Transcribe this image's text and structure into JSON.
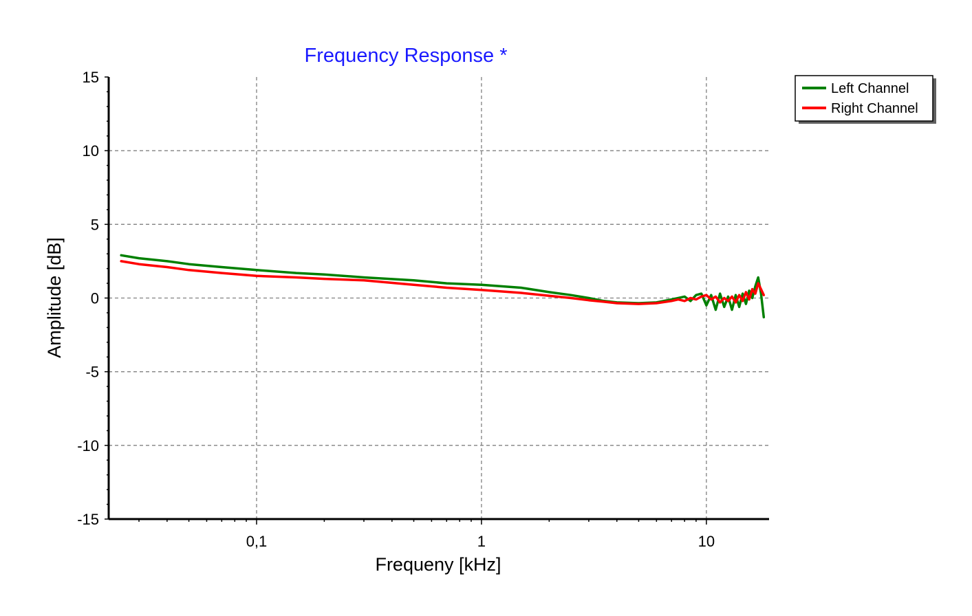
{
  "chart_data": {
    "type": "line",
    "title": "Frequency Response *",
    "xlabel": "Frequeny [kHz]",
    "ylabel": "Amplitude [dB]",
    "xscale": "log",
    "xlim": [
      0.022,
      19
    ],
    "ylim": [
      -15,
      15
    ],
    "x_ticks": [
      {
        "value": 0.1,
        "label": "0,1"
      },
      {
        "value": 1,
        "label": "1"
      },
      {
        "value": 10,
        "label": "10"
      }
    ],
    "y_ticks": [
      {
        "value": 15,
        "label": "15"
      },
      {
        "value": 10,
        "label": "10"
      },
      {
        "value": 5,
        "label": "5"
      },
      {
        "value": 0,
        "label": "0"
      },
      {
        "value": -5,
        "label": "-5"
      },
      {
        "value": -10,
        "label": "-10"
      },
      {
        "value": -15,
        "label": "-15"
      }
    ],
    "grid": true,
    "legend_position": "top-right",
    "title_color": "#1a1aff",
    "series": [
      {
        "name": "Left Channel",
        "color": "#008000",
        "x": [
          0.025,
          0.03,
          0.04,
          0.05,
          0.07,
          0.1,
          0.15,
          0.2,
          0.3,
          0.5,
          0.7,
          1.0,
          1.5,
          2.0,
          2.5,
          3.0,
          3.5,
          4.0,
          5.0,
          6.0,
          7.0,
          7.5,
          8.0,
          8.5,
          9.0,
          9.5,
          10.0,
          10.5,
          11.0,
          11.5,
          12.0,
          12.5,
          13.0,
          13.5,
          14.0,
          14.5,
          15.0,
          15.5,
          16.0,
          16.5,
          17.0,
          17.5,
          18.0
        ],
        "y": [
          2.9,
          2.7,
          2.5,
          2.3,
          2.1,
          1.9,
          1.7,
          1.6,
          1.4,
          1.2,
          1.0,
          0.9,
          0.7,
          0.4,
          0.2,
          0.0,
          -0.2,
          -0.3,
          -0.35,
          -0.3,
          -0.1,
          0.0,
          0.1,
          -0.2,
          0.2,
          0.3,
          -0.5,
          0.2,
          -0.8,
          0.3,
          -0.6,
          0.1,
          -0.8,
          0.2,
          -0.6,
          0.3,
          -0.4,
          0.5,
          0.0,
          0.8,
          1.4,
          0.3,
          -1.3
        ]
      },
      {
        "name": "Right Channel",
        "color": "#ff0000",
        "x": [
          0.025,
          0.03,
          0.04,
          0.05,
          0.07,
          0.1,
          0.15,
          0.2,
          0.3,
          0.5,
          0.7,
          1.0,
          1.5,
          2.0,
          2.5,
          3.0,
          3.5,
          4.0,
          5.0,
          6.0,
          7.0,
          7.5,
          8.0,
          8.5,
          9.0,
          9.5,
          10.0,
          10.5,
          11.0,
          11.5,
          12.0,
          12.5,
          13.0,
          13.5,
          14.0,
          14.5,
          15.0,
          15.5,
          16.0,
          16.5,
          17.0,
          17.5,
          18.0
        ],
        "y": [
          2.5,
          2.3,
          2.1,
          1.9,
          1.7,
          1.5,
          1.4,
          1.3,
          1.2,
          0.9,
          0.7,
          0.55,
          0.35,
          0.15,
          0.0,
          -0.15,
          -0.25,
          -0.35,
          -0.4,
          -0.35,
          -0.2,
          -0.1,
          -0.2,
          0.0,
          -0.1,
          0.1,
          0.2,
          -0.1,
          0.1,
          -0.3,
          0.0,
          -0.2,
          0.1,
          -0.3,
          0.2,
          -0.2,
          0.4,
          -0.1,
          0.6,
          0.3,
          1.0,
          0.6,
          0.2
        ]
      }
    ]
  }
}
